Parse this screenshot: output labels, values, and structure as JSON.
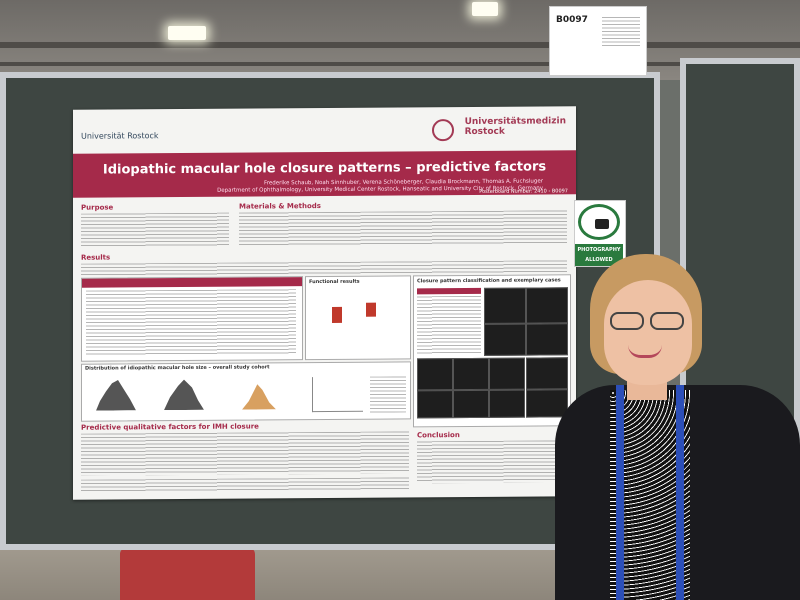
{
  "sign": {
    "code": "B0097"
  },
  "poster": {
    "uni_left": "Universität Rostock",
    "uni_right_1": "Universitätsmedizin",
    "uni_right_2": "Rostock",
    "title": "Idiopathic macular hole closure patterns – predictive factors",
    "authors": "Frederike Schaub, Noah Sinnhuber, Verena Schöneberger, Claudia Brockmann, Thomas A. Fuchsluger",
    "department": "Department of Ophthalmology, University Medical Center Rostock, Hanseatic and University City of Rostock, Germany",
    "board_number": "Posterboard Number: 2410 - B0097",
    "sections": {
      "purpose": "Purpose",
      "methods": "Materials & Methods",
      "results": "Results",
      "functional": "Functional results",
      "closure": "Closure pattern classification and exemplary cases",
      "distribution": "Distribution of idiopathic macular hole size – overall study cohort",
      "predictive": "Predictive qualitative factors for IMH closure",
      "conclusion": "Conclusion"
    }
  },
  "badge": {
    "line1": "PHOTOGRAPHY",
    "line2": "ALLOWED"
  },
  "colors": {
    "accent": "#a52a4a",
    "badge": "#2a7a3e"
  }
}
